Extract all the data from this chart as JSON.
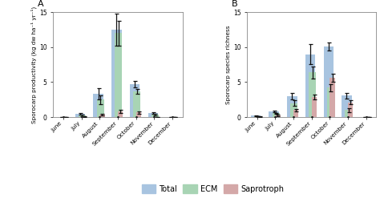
{
  "months": [
    "June",
    "July",
    "August",
    "September",
    "October",
    "November",
    "December"
  ],
  "panel_A": {
    "title": "A",
    "ylabel": "Sporocarp productivity (kg dw ha⁻¹ yr⁻¹)",
    "ylim": [
      0,
      15
    ],
    "yticks": [
      0,
      5,
      10,
      15
    ],
    "total": [
      0.05,
      0.5,
      3.3,
      12.5,
      4.7,
      0.6,
      0.05
    ],
    "ecm": [
      0.03,
      0.25,
      2.5,
      12.0,
      3.7,
      0.4,
      0.03
    ],
    "saprotroph": [
      0.02,
      0.1,
      0.4,
      0.8,
      0.65,
      0.05,
      0.02
    ],
    "total_err": [
      0.0,
      0.1,
      0.8,
      2.3,
      0.5,
      0.15,
      0.0
    ],
    "ecm_err": [
      0.0,
      0.08,
      0.6,
      1.8,
      0.38,
      0.12,
      0.0
    ],
    "saprotroph_err": [
      0.0,
      0.04,
      0.12,
      0.22,
      0.18,
      0.02,
      0.0
    ]
  },
  "panel_B": {
    "title": "B",
    "ylabel": "Sporocarp species richness",
    "ylim": [
      0,
      15
    ],
    "yticks": [
      0,
      5,
      10,
      15
    ],
    "total": [
      0.2,
      0.85,
      3.0,
      9.0,
      10.1,
      3.1,
      0.05
    ],
    "ecm": [
      0.12,
      0.55,
      2.0,
      6.4,
      4.2,
      1.0,
      0.03
    ],
    "saprotroph": [
      0.1,
      0.25,
      1.0,
      2.9,
      5.6,
      2.1,
      0.03
    ],
    "total_err": [
      0.05,
      0.12,
      0.45,
      1.4,
      0.6,
      0.4,
      0.0
    ],
    "ecm_err": [
      0.03,
      0.08,
      0.38,
      0.85,
      0.5,
      0.25,
      0.0
    ],
    "saprotroph_err": [
      0.03,
      0.06,
      0.18,
      0.35,
      0.55,
      0.28,
      0.0
    ]
  },
  "colors": {
    "total": "#a8c4e0",
    "ecm": "#a8d4b4",
    "saprotroph": "#d4a8a8"
  },
  "dot_color": "#222222",
  "error_color": "#111111",
  "background_color": "#ffffff"
}
